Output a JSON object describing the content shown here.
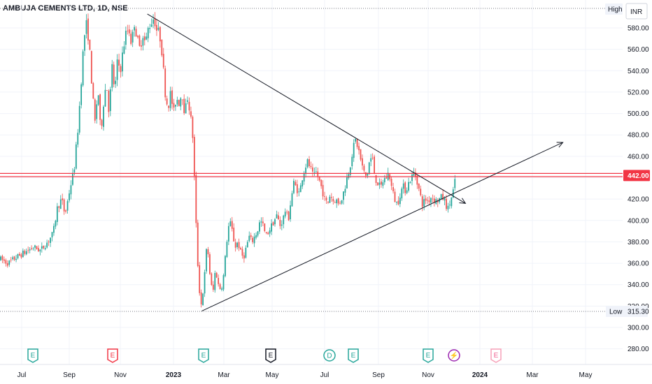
{
  "chart_data": {
    "type": "candlestick",
    "title": "AMBUJA CEMENTS LTD, 1D, NSE",
    "currency_label": "INR",
    "y_ticks": [
      280,
      300,
      320,
      340,
      360,
      380,
      400,
      420,
      440,
      460,
      480,
      500,
      520,
      540,
      560,
      580
    ],
    "y_tick_labels": [
      "280.00",
      "300.00",
      "320.00",
      "340.00",
      "360.00",
      "380.00",
      "400.00",
      "420.00",
      "440.00",
      "460.00",
      "480.00",
      "500.00",
      "520.00",
      "540.00",
      "560.00",
      "580.00"
    ],
    "ylim": [
      272,
      598
    ],
    "x_labels": [
      "Jul",
      "Sep",
      "Nov",
      "2023",
      "Mar",
      "May",
      "Jul",
      "Sep",
      "Nov",
      "2024",
      "Mar",
      "May"
    ],
    "high_label": "High",
    "low_label": "Low",
    "low_value": "315.30",
    "current_price": "442.00",
    "horizontal_levels": [
      444,
      441
    ],
    "trendlines": [
      {
        "from": [
          "2022-12-02",
          593
        ],
        "to": [
          "2023-12-15",
          416
        ],
        "arrow": true
      },
      {
        "from": [
          "2023-02-03",
          315.3
        ],
        "to": [
          "2024-04-05",
          473
        ],
        "arrow": true
      }
    ],
    "events": [
      {
        "label": "E",
        "type": "earnings"
      },
      {
        "label": "E",
        "type": "earnings-missed"
      },
      {
        "label": "E",
        "type": "earnings"
      },
      {
        "label": "E",
        "type": "earnings-neutral"
      },
      {
        "label": "D",
        "type": "dividend"
      },
      {
        "label": "E",
        "type": "earnings"
      },
      {
        "label": "E",
        "type": "earnings"
      },
      {
        "label": "⚡",
        "type": "split"
      },
      {
        "label": "E",
        "type": "earnings-upcoming"
      }
    ],
    "series": [
      {
        "name": "price",
        "anchors": [
          [
            0,
            364
          ],
          [
            12,
            360
          ],
          [
            22,
            365
          ],
          [
            35,
            370
          ],
          [
            48,
            375
          ],
          [
            58,
            372
          ],
          [
            68,
            380
          ],
          [
            76,
            388
          ],
          [
            82,
            412
          ],
          [
            88,
            420
          ],
          [
            93,
            405
          ],
          [
            100,
            430
          ],
          [
            106,
            448
          ],
          [
            112,
            490
          ],
          [
            116,
            530
          ],
          [
            120,
            570
          ],
          [
            124,
            585
          ],
          [
            128,
            560
          ],
          [
            132,
            520
          ],
          [
            136,
            490
          ],
          [
            140,
            525
          ],
          [
            144,
            480
          ],
          [
            148,
            510
          ],
          [
            152,
            530
          ],
          [
            156,
            500
          ],
          [
            160,
            545
          ],
          [
            164,
            520
          ],
          [
            168,
            550
          ],
          [
            172,
            540
          ],
          [
            176,
            560
          ],
          [
            180,
            575
          ],
          [
            184,
            580
          ],
          [
            188,
            565
          ],
          [
            192,
            585
          ],
          [
            196,
            570
          ],
          [
            200,
            560
          ],
          [
            204,
            575
          ],
          [
            208,
            565
          ],
          [
            212,
            580
          ],
          [
            216,
            585
          ],
          [
            220,
            590
          ],
          [
            224,
            578
          ],
          [
            228,
            575
          ],
          [
            232,
            555
          ],
          [
            236,
            520
          ],
          [
            240,
            505
          ],
          [
            244,
            520
          ],
          [
            248,
            500
          ],
          [
            252,
            515
          ],
          [
            256,
            510
          ],
          [
            260,
            520
          ],
          [
            264,
            500
          ],
          [
            268,
            515
          ],
          [
            272,
            500
          ],
          [
            276,
            475
          ],
          [
            280,
            400
          ],
          [
            284,
            340
          ],
          [
            288,
            320
          ],
          [
            292,
            345
          ],
          [
            296,
            380
          ],
          [
            300,
            350
          ],
          [
            304,
            330
          ],
          [
            308,
            355
          ],
          [
            312,
            340
          ],
          [
            316,
            335
          ],
          [
            320,
            350
          ],
          [
            324,
            380
          ],
          [
            328,
            400
          ],
          [
            332,
            390
          ],
          [
            336,
            375
          ],
          [
            340,
            380
          ],
          [
            344,
            370
          ],
          [
            348,
            365
          ],
          [
            352,
            375
          ],
          [
            356,
            385
          ],
          [
            360,
            380
          ],
          [
            364,
            385
          ],
          [
            368,
            390
          ],
          [
            372,
            400
          ],
          [
            376,
            395
          ],
          [
            380,
            385
          ],
          [
            384,
            390
          ],
          [
            388,
            395
          ],
          [
            392,
            400
          ],
          [
            396,
            405
          ],
          [
            400,
            395
          ],
          [
            404,
            400
          ],
          [
            408,
            410
          ],
          [
            412,
            400
          ],
          [
            416,
            420
          ],
          [
            420,
            435
          ],
          [
            424,
            430
          ],
          [
            428,
            425
          ],
          [
            432,
            440
          ],
          [
            436,
            450
          ],
          [
            440,
            455
          ],
          [
            444,
            448
          ],
          [
            448,
            440
          ],
          [
            452,
            445
          ],
          [
            456,
            438
          ],
          [
            460,
            430
          ],
          [
            464,
            420
          ],
          [
            468,
            415
          ],
          [
            472,
            425
          ],
          [
            476,
            418
          ],
          [
            480,
            420
          ],
          [
            484,
            415
          ],
          [
            488,
            420
          ],
          [
            492,
            428
          ],
          [
            496,
            440
          ],
          [
            500,
            450
          ],
          [
            504,
            465
          ],
          [
            508,
            475
          ],
          [
            512,
            468
          ],
          [
            516,
            455
          ],
          [
            520,
            445
          ],
          [
            524,
            440
          ],
          [
            528,
            455
          ],
          [
            532,
            460
          ],
          [
            536,
            440
          ],
          [
            540,
            435
          ],
          [
            544,
            430
          ],
          [
            548,
            438
          ],
          [
            552,
            440
          ],
          [
            556,
            445
          ],
          [
            560,
            430
          ],
          [
            564,
            420
          ],
          [
            568,
            415
          ],
          [
            572,
            425
          ],
          [
            576,
            432
          ],
          [
            580,
            428
          ],
          [
            584,
            435
          ],
          [
            588,
            440
          ],
          [
            592,
            445
          ],
          [
            596,
            438
          ],
          [
            600,
            425
          ],
          [
            604,
            415
          ],
          [
            608,
            420
          ],
          [
            612,
            418
          ],
          [
            616,
            422
          ],
          [
            620,
            420
          ],
          [
            624,
            418
          ],
          [
            628,
            420
          ],
          [
            632,
            422
          ],
          [
            636,
            418
          ],
          [
            640,
            410
          ],
          [
            644,
            418
          ],
          [
            648,
            428
          ],
          [
            652,
            442
          ]
        ]
      }
    ]
  },
  "colors": {
    "up": "#26a69a",
    "down": "#ef5350",
    "level": "#f23645",
    "trendline": "#131722",
    "grid": "#f0f3fa",
    "axis_text": "#131722",
    "earnings": "#26a69a",
    "earnings_missed": "#f23645",
    "dividend": "#26a69a",
    "split": "#9c27b0",
    "neutral": "#131722"
  }
}
